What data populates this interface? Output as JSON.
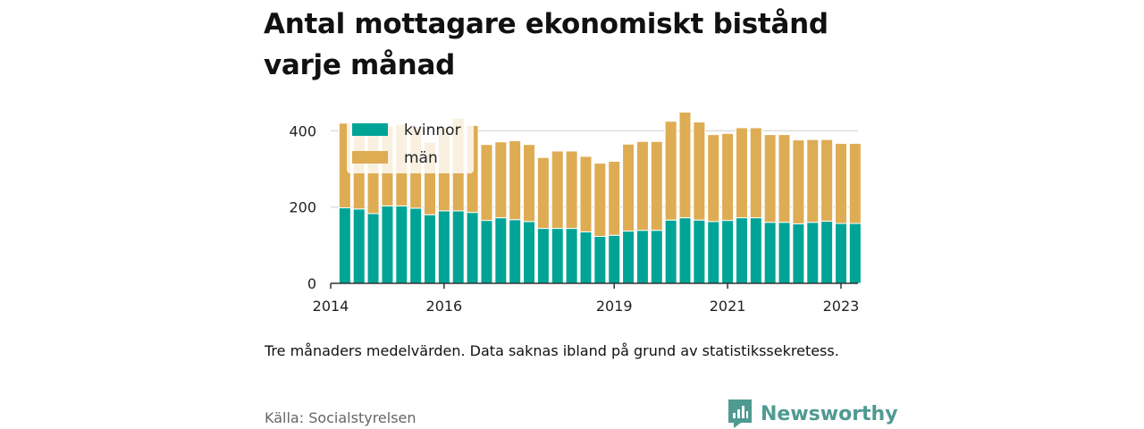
{
  "title": "Antal mottagare ekonomiskt bistånd varje månad",
  "note": "Tre månaders medelvärden. Data saknas ibland på grund av statistikssekretess.",
  "source": "Källa: Socialstyrelsen",
  "brand": {
    "name": "Newsworthy",
    "icon": "newsworthy-logo-icon",
    "color": "#4f9a92"
  },
  "chart_data": {
    "type": "bar",
    "stacked": true,
    "title": "Antal mottagare ekonomiskt bistånd varje månad",
    "xlabel": "",
    "ylabel": "",
    "ylim": [
      0,
      450
    ],
    "yticks": [
      0,
      200,
      400
    ],
    "xlim": [
      2014.0,
      2023.3
    ],
    "xticks": [
      2014,
      2016,
      2019,
      2021,
      2023
    ],
    "grid": true,
    "legend": "top-left",
    "x": [
      2014.25,
      2014.5,
      2014.75,
      2015.0,
      2015.25,
      2015.5,
      2015.75,
      2016.0,
      2016.25,
      2016.5,
      2016.75,
      2017.0,
      2017.25,
      2017.5,
      2017.75,
      2018.0,
      2018.25,
      2018.5,
      2018.75,
      2019.0,
      2019.25,
      2019.5,
      2019.75,
      2020.0,
      2020.25,
      2020.5,
      2020.75,
      2021.0,
      2021.25,
      2021.5,
      2021.75,
      2022.0,
      2022.25,
      2022.5,
      2022.75,
      2023.0,
      2023.25
    ],
    "series": [
      {
        "name": "kvinnor",
        "color": "#00a496",
        "values": [
          198,
          195,
          183,
          203,
          203,
          197,
          180,
          190,
          190,
          186,
          165,
          172,
          167,
          162,
          144,
          144,
          144,
          135,
          123,
          126,
          137,
          139,
          139,
          166,
          172,
          166,
          162,
          165,
          172,
          172,
          160,
          160,
          156,
          160,
          163,
          157,
          157
        ]
      },
      {
        "name": "män",
        "color": "#deac53",
        "values": [
          222,
          222,
          207,
          209,
          214,
          216,
          190,
          221,
          243,
          228,
          199,
          199,
          207,
          202,
          186,
          203,
          203,
          198,
          192,
          194,
          228,
          233,
          233,
          259,
          277,
          257,
          228,
          228,
          236,
          236,
          230,
          230,
          220,
          217,
          214,
          210,
          210
        ]
      }
    ]
  }
}
